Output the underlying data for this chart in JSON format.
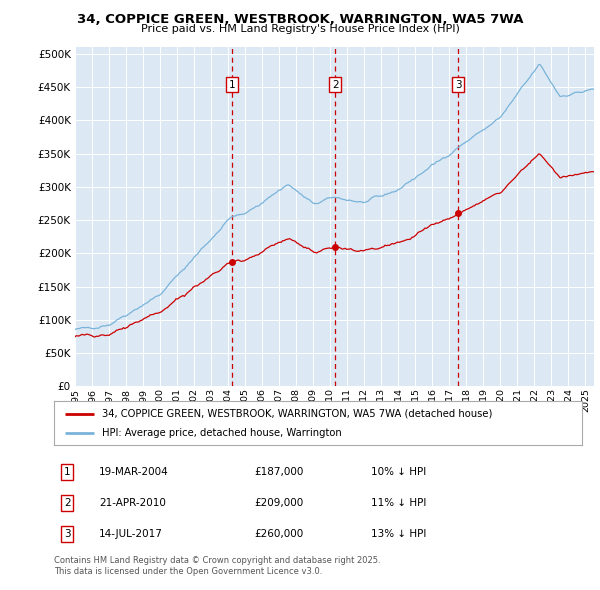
{
  "title1": "34, COPPICE GREEN, WESTBROOK, WARRINGTON, WA5 7WA",
  "title2": "Price paid vs. HM Land Registry's House Price Index (HPI)",
  "legend_label1": "34, COPPICE GREEN, WESTBROOK, WARRINGTON, WA5 7WA (detached house)",
  "legend_label2": "HPI: Average price, detached house, Warrington",
  "hpi_color": "#7ab3d9",
  "price_color": "#cc0000",
  "vline_color": "#cc0000",
  "background_color": "#dce9f5",
  "yticks": [
    0,
    50000,
    100000,
    150000,
    200000,
    250000,
    300000,
    350000,
    400000,
    450000,
    500000
  ],
  "ylim": [
    0,
    510000
  ],
  "xlim_start": 1995.0,
  "xlim_end": 2025.5,
  "sale_dates": [
    2004.21,
    2010.3,
    2017.53
  ],
  "sale_prices": [
    187000,
    209000,
    260000
  ],
  "sale_labels": [
    "1",
    "2",
    "3"
  ],
  "sale_table": [
    {
      "label": "1",
      "date": "19-MAR-2004",
      "price": "£187,000",
      "pct": "10% ↓ HPI"
    },
    {
      "label": "2",
      "date": "21-APR-2010",
      "price": "£209,000",
      "pct": "11% ↓ HPI"
    },
    {
      "label": "3",
      "date": "14-JUL-2017",
      "price": "£260,000",
      "pct": "13% ↓ HPI"
    }
  ],
  "footer": "Contains HM Land Registry data © Crown copyright and database right 2025.\nThis data is licensed under the Open Government Licence v3.0."
}
